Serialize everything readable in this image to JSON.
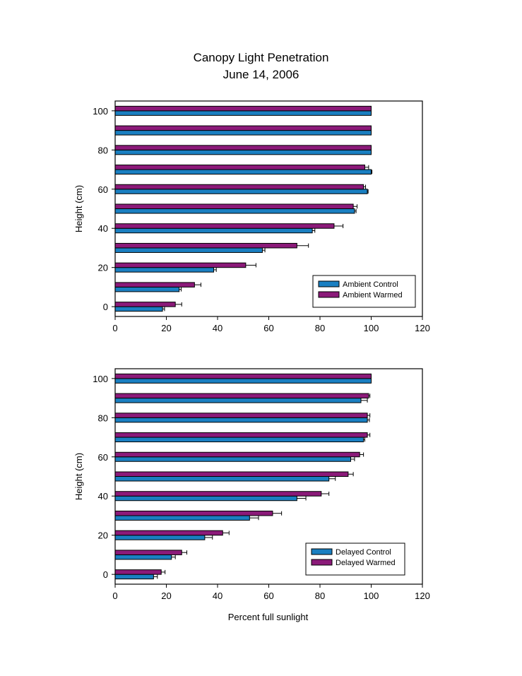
{
  "title_line1": "Canopy Light Penetration",
  "title_line2": "June 14, 2006",
  "chart_data": [
    {
      "type": "bar",
      "orientation": "horizontal",
      "ylabel": "Height (cm)",
      "xlabel": "",
      "xlim": [
        0,
        120
      ],
      "ylim": [
        -5,
        105
      ],
      "x_ticks": [
        0,
        20,
        40,
        60,
        80,
        100,
        120
      ],
      "y_ticks": [
        0,
        20,
        40,
        60,
        80,
        100
      ],
      "categories": [
        0,
        10,
        20,
        30,
        40,
        50,
        60,
        70,
        80,
        90,
        100
      ],
      "legend_position": "bottom-right",
      "series": [
        {
          "name": "Ambient Control",
          "color": "#1a7fc1",
          "values": [
            18.5,
            25,
            38.5,
            57.5,
            77,
            93.5,
            98.5,
            100,
            100,
            100,
            100
          ],
          "errors": [
            0.8,
            0.8,
            1,
            1,
            1,
            0.6,
            0.3,
            0.3,
            0,
            0,
            0
          ]
        },
        {
          "name": "Ambient Warmed",
          "color": "#8b1a79",
          "values": [
            23.5,
            31,
            51,
            71,
            85.5,
            93,
            97,
            97.5,
            100,
            100,
            100
          ],
          "errors": [
            2.5,
            2.5,
            4,
            4.5,
            3.5,
            1.5,
            0.8,
            1.5,
            0,
            0,
            0
          ]
        }
      ]
    },
    {
      "type": "bar",
      "orientation": "horizontal",
      "ylabel": "Height (cm)",
      "xlabel": "Percent full sunlight",
      "xlim": [
        0,
        120
      ],
      "ylim": [
        -5,
        105
      ],
      "x_ticks": [
        0,
        20,
        40,
        60,
        80,
        100,
        120
      ],
      "y_ticks": [
        0,
        20,
        40,
        60,
        80,
        100
      ],
      "categories": [
        0,
        10,
        20,
        30,
        40,
        50,
        60,
        70,
        80,
        90,
        100
      ],
      "legend_position": "bottom-right",
      "series": [
        {
          "name": "Delayed Control",
          "color": "#1a7fc1",
          "values": [
            15,
            22,
            35,
            52.5,
            71,
            83.5,
            92,
            97,
            98.5,
            96,
            100
          ],
          "errors": [
            1.5,
            1.5,
            3,
            3.5,
            3.5,
            2.5,
            1.5,
            0.5,
            0.8,
            2.5,
            0
          ]
        },
        {
          "name": "Delayed Warmed",
          "color": "#8b1a79",
          "values": [
            18,
            26,
            42,
            61.5,
            80.5,
            91,
            95.5,
            98.5,
            98.5,
            99,
            100
          ],
          "errors": [
            1.5,
            2,
            2.5,
            3.5,
            3,
            2,
            1.5,
            1,
            1,
            0.5,
            0
          ]
        }
      ]
    }
  ]
}
